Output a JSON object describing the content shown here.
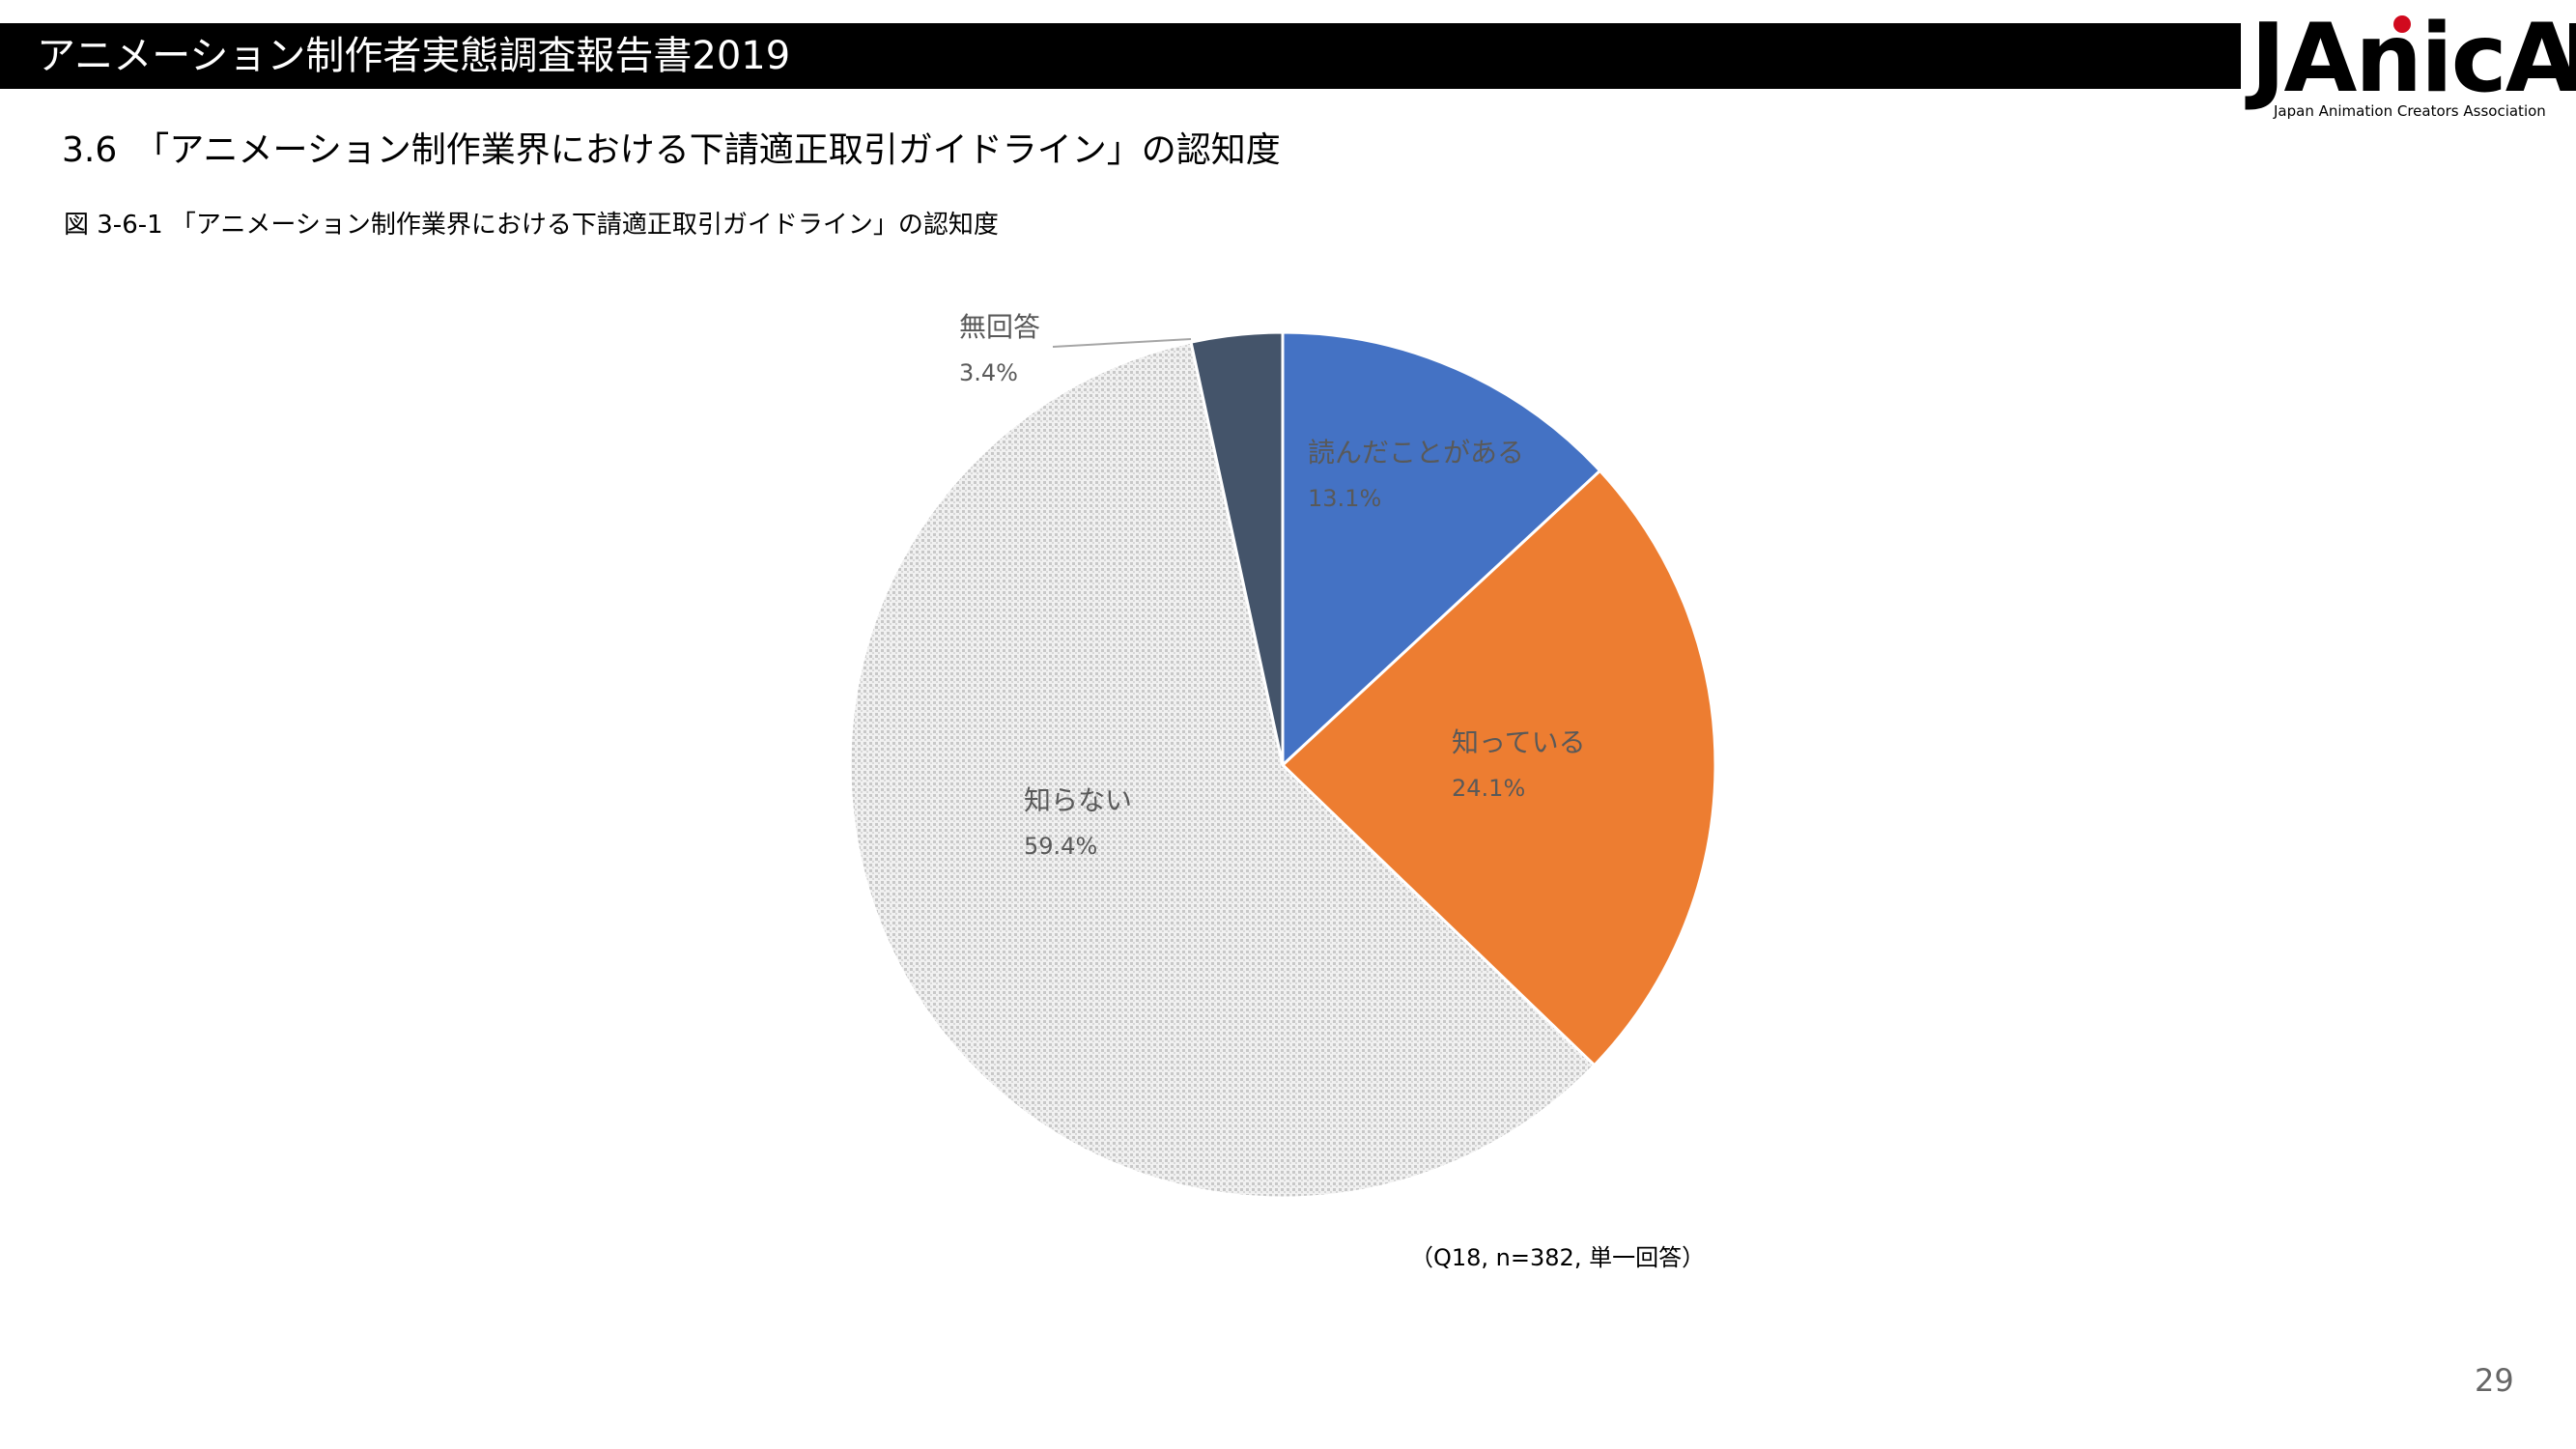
{
  "header": {
    "title": "アニメーション制作者実態調査報告書2019",
    "logo_text": "JAnicA",
    "logo_subtitle": "Japan Animation Creators Association"
  },
  "section": {
    "title": "3.6　「アニメーション制作業界における下請適正取引ガイドライン」の認知度",
    "figure_caption": "図 3-6-1 「アニメーション制作業界における下請適正取引ガイドライン」の認知度"
  },
  "chart_data": {
    "type": "pie",
    "categories": [
      "読んだことがある",
      "知っている",
      "知らない",
      "無回答"
    ],
    "values": [
      13.1,
      24.1,
      59.4,
      3.4
    ],
    "value_labels": [
      "13.1%",
      "24.1%",
      "59.4%",
      "3.4%"
    ],
    "colors": [
      "#4472c4",
      "#ed7d31",
      "#d9d9d9",
      "#44546a"
    ],
    "start_angle_deg": 0,
    "direction": "clockwise",
    "legend": "none"
  },
  "note": "（Q18, n=382, 単一回答）",
  "page_number": "29"
}
